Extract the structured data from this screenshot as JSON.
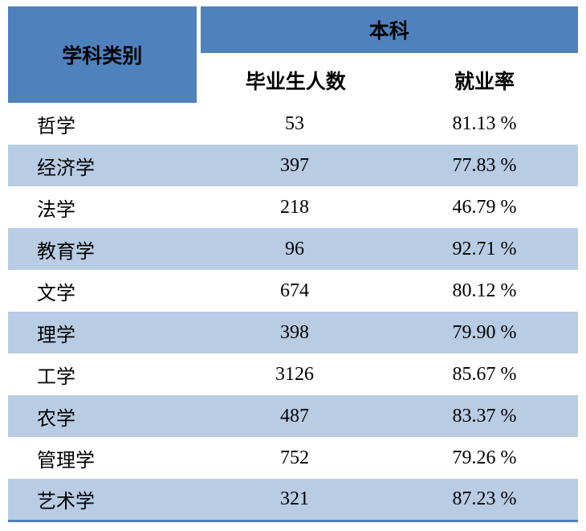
{
  "table": {
    "category_header": "学科类别",
    "group_header": "本科",
    "columns": [
      "毕业生人数",
      "就业率"
    ],
    "rows": [
      {
        "category": "哲学",
        "graduates": "53",
        "rate": "81.13 %"
      },
      {
        "category": "经济学",
        "graduates": "397",
        "rate": "77.83 %"
      },
      {
        "category": "法学",
        "graduates": "218",
        "rate": "46.79 %"
      },
      {
        "category": "教育学",
        "graduates": "96",
        "rate": "92.71 %"
      },
      {
        "category": "文学",
        "graduates": "674",
        "rate": "80.12 %"
      },
      {
        "category": "理学",
        "graduates": "398",
        "rate": "79.90 %"
      },
      {
        "category": "工学",
        "graduates": "3126",
        "rate": "85.67 %"
      },
      {
        "category": "农学",
        "graduates": "487",
        "rate": "83.37 %"
      },
      {
        "category": "管理学",
        "graduates": "752",
        "rate": "79.26 %"
      },
      {
        "category": "艺术学",
        "graduates": "321",
        "rate": "87.23 %"
      }
    ]
  },
  "colors": {
    "header_blue": "#4f81bd",
    "band_blue": "#b8cce4",
    "border_blue": "#4f81bd",
    "text": "#000000"
  },
  "chart_data": {
    "type": "table",
    "title": "",
    "group_header": "本科",
    "columns": [
      "学科类别",
      "毕业生人数",
      "就业率"
    ],
    "rows": [
      [
        "哲学",
        53,
        "81.13 %"
      ],
      [
        "经济学",
        397,
        "77.83 %"
      ],
      [
        "法学",
        218,
        "46.79 %"
      ],
      [
        "教育学",
        96,
        "92.71 %"
      ],
      [
        "文学",
        674,
        "80.12 %"
      ],
      [
        "理学",
        398,
        "79.90 %"
      ],
      [
        "工学",
        3126,
        "85.67 %"
      ],
      [
        "农学",
        487,
        "83.37 %"
      ],
      [
        "管理学",
        752,
        "79.26 %"
      ],
      [
        "艺术学",
        321,
        "87.23 %"
      ]
    ],
    "layout_hints": {
      "banded_rows": true,
      "band_color": "#b8cce4",
      "header_color": "#4f81bd",
      "bottom_border": "#4f81bd"
    }
  }
}
